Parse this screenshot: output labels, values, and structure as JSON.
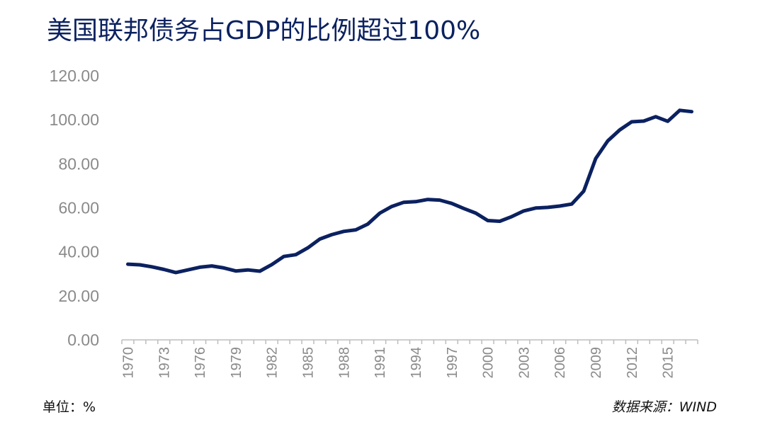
{
  "title": "美国联邦债务占GDP的比例超过100%",
  "footer": {
    "unit": "单位：%",
    "source": "数据来源：WIND"
  },
  "chart_data": {
    "type": "line",
    "title": "美国联邦债务占GDP的比例超过100%",
    "xlabel": "",
    "ylabel": "",
    "ylim": [
      0,
      120
    ],
    "ytick_labels": [
      "0.00",
      "20.00",
      "40.00",
      "60.00",
      "80.00",
      "100.00",
      "120.00"
    ],
    "ytick_values": [
      0,
      20,
      40,
      60,
      80,
      100,
      120
    ],
    "xtick_labels": [
      "1970",
      "1973",
      "1976",
      "1979",
      "1982",
      "1985",
      "1988",
      "1991",
      "1994",
      "1997",
      "2000",
      "2003",
      "2006",
      "2009",
      "2012",
      "2015"
    ],
    "grid": false,
    "line_color": "#0b2160",
    "series": [
      {
        "x": [
          1970,
          1971,
          1972,
          1973,
          1974,
          1975,
          1976,
          1977,
          1978,
          1979,
          1980,
          1981,
          1982,
          1983,
          1984,
          1985,
          1986,
          1987,
          1988,
          1989,
          1990,
          1991,
          1992,
          1993,
          1994,
          1995,
          1996,
          1997,
          1998,
          1999,
          2000,
          2001,
          2002,
          2003,
          2004,
          2005,
          2006,
          2007,
          2008,
          2009,
          2010,
          2011,
          2012,
          2013,
          2014,
          2015,
          2016,
          2017
        ],
        "values": [
          34.4,
          34.1,
          33.2,
          32.0,
          30.6,
          31.8,
          33.0,
          33.6,
          32.7,
          31.3,
          31.8,
          31.2,
          34.2,
          37.9,
          38.7,
          41.8,
          45.8,
          47.8,
          49.3,
          50.0,
          52.6,
          57.6,
          60.6,
          62.5,
          62.8,
          63.8,
          63.5,
          62.0,
          59.7,
          57.6,
          54.2,
          53.9,
          56.0,
          58.6,
          59.9,
          60.2,
          60.8,
          61.7,
          67.6,
          82.4,
          90.4,
          95.4,
          99.1,
          99.4,
          101.4,
          99.3,
          104.3,
          103.7
        ]
      }
    ]
  }
}
